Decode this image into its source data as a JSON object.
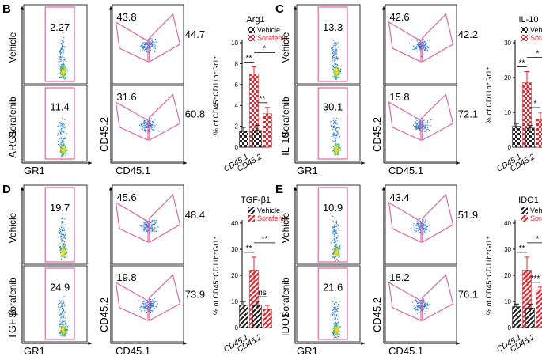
{
  "panels": [
    {
      "id": "B",
      "letter": "B",
      "marker": "ARG1",
      "row_top": "Vehicle",
      "row_bottom": "Sorafenib",
      "gr1_gate": {
        "vehicle": "2.27",
        "sorafenib": "11.4"
      },
      "cd45": {
        "vehicle": {
          "left": "43.8",
          "right": "44.7"
        },
        "sorafenib": {
          "left": "31.6",
          "right": "60.8"
        }
      },
      "legend_style": "check",
      "bar_style": "check",
      "show_ns": false
    },
    {
      "id": "C",
      "letter": "C",
      "marker": "IL-10",
      "row_top": "Vehicle",
      "row_bottom": "Sorafenib",
      "gr1_gate": {
        "vehicle": "13.3",
        "sorafenib": "30.1"
      },
      "cd45": {
        "vehicle": {
          "left": "42.6",
          "right": "42.2"
        },
        "sorafenib": {
          "left": "15.8",
          "right": "72.1"
        }
      },
      "legend_style": "check",
      "bar_style": "check",
      "show_ns": false
    },
    {
      "id": "D",
      "letter": "D",
      "marker": "TGF-β",
      "row_top": "Vehicle",
      "row_bottom": "Sorafenib",
      "gr1_gate": {
        "vehicle": "19.7",
        "sorafenib": "24.9"
      },
      "cd45": {
        "vehicle": {
          "left": "45.6",
          "right": "48.4"
        },
        "sorafenib": {
          "left": "19.8",
          "right": "73.9"
        }
      },
      "legend_style": "stripe",
      "bar_style": "stripe",
      "show_ns": true
    },
    {
      "id": "E",
      "letter": "E",
      "marker": "IDO1",
      "row_top": "Vehicle",
      "row_bottom": "Sorafenib",
      "gr1_gate": {
        "vehicle": "10.9",
        "sorafenib": "21.6"
      },
      "cd45": {
        "vehicle": {
          "left": "43.4",
          "right": "51.9"
        },
        "sorafenib": {
          "left": "18.2",
          "right": "76.1"
        }
      },
      "legend_style": "stripe",
      "bar_style": "stripe",
      "show_ns": false
    }
  ],
  "axis": {
    "gr1": "GR1",
    "cd45_2": "CD45.2",
    "cd45_1": "CD45.1"
  },
  "colors": {
    "gate": "#e8579a",
    "vehicle": "#222222",
    "sorafenib": "#e8232a",
    "axis": "#000000"
  },
  "chart_data": [
    {
      "type": "bar",
      "panel": "B",
      "title": "Arg1",
      "ylabel": "% of CD45⁺CD11b⁺Gr1⁺",
      "categories": [
        "CD45.1",
        "CD45.2"
      ],
      "ylim": [
        0,
        10
      ],
      "yticks": [
        "0",
        "2",
        "4",
        "6",
        "8",
        "10"
      ],
      "series": [
        {
          "name": "Vehicle",
          "values": [
            1.5,
            1.6
          ],
          "errors": [
            0.4,
            0.5
          ]
        },
        {
          "name": "Sorafenib",
          "values": [
            7.0,
            3.2
          ],
          "errors": [
            0.7,
            0.6
          ]
        }
      ],
      "annotations": [
        {
          "text": "**",
          "between": "CD45.1 Vehicle vs Sorafenib"
        },
        {
          "text": "**",
          "between": "CD45.2 Vehicle vs Sorafenib"
        },
        {
          "text": "*",
          "between": "Sorafenib CD45.1 vs CD45.2"
        }
      ]
    },
    {
      "type": "bar",
      "panel": "C",
      "title": "IL-10",
      "ylabel": "% of CD11b⁺Gr1⁺",
      "categories": [
        "CD45.1",
        "CD45.2"
      ],
      "ylim": [
        0,
        30
      ],
      "yticks": [
        "0",
        "10",
        "20",
        "30"
      ],
      "series": [
        {
          "name": "Vehicle",
          "values": [
            6.0,
            5.5
          ],
          "errors": [
            0.8,
            0.8
          ]
        },
        {
          "name": "Sorafenib",
          "values": [
            18.5,
            8.0
          ],
          "errors": [
            3.2,
            2.0
          ]
        }
      ],
      "annotations": [
        {
          "text": "**",
          "between": "CD45.1 Vehicle vs Sorafenib"
        },
        {
          "text": "*",
          "between": "CD45.2 Vehicle vs Sorafenib"
        },
        {
          "text": "*",
          "between": "Sorafenib CD45.1 vs CD45.2"
        }
      ]
    },
    {
      "type": "bar",
      "panel": "D",
      "title": "TGF-β1",
      "ylabel": "% of CD45⁺CD11b⁺Gr1⁺",
      "categories": [
        "CD45.1",
        "CD45.2"
      ],
      "ylim": [
        0,
        40
      ],
      "yticks": [
        "0",
        "10",
        "20",
        "30",
        "40"
      ],
      "series": [
        {
          "name": "Vehicle",
          "values": [
            8.5,
            8.5
          ],
          "errors": [
            1.5,
            1.5
          ]
        },
        {
          "name": "Sorafenib",
          "values": [
            22.0,
            7.0
          ],
          "errors": [
            5.0,
            1.5
          ]
        }
      ],
      "annotations": [
        {
          "text": "**",
          "between": "CD45.1 Vehicle vs Sorafenib"
        },
        {
          "text": "ns",
          "between": "CD45.2 Vehicle vs Sorafenib"
        },
        {
          "text": "**",
          "between": "Sorafenib CD45.1 vs CD45.2"
        }
      ]
    },
    {
      "type": "bar",
      "panel": "E",
      "title": "IDO1",
      "ylabel": "% of CD45⁺CD11b⁺Gr1⁺",
      "categories": [
        "CD45.1",
        "CD45.2"
      ],
      "ylim": [
        0,
        40
      ],
      "yticks": [
        "0",
        "10",
        "20",
        "30",
        "40"
      ],
      "series": [
        {
          "name": "Vehicle",
          "values": [
            8.0,
            7.5
          ],
          "errors": [
            1.0,
            1.5
          ]
        },
        {
          "name": "Sorafenib",
          "values": [
            22.0,
            14.5
          ],
          "errors": [
            5.0,
            1.0
          ]
        }
      ],
      "annotations": [
        {
          "text": "**",
          "between": "CD45.1 Vehicle vs Sorafenib"
        },
        {
          "text": "***",
          "between": "CD45.2 Vehicle vs Sorafenib"
        },
        {
          "text": "*",
          "between": "Sorafenib CD45.1 vs CD45.2"
        }
      ]
    }
  ]
}
